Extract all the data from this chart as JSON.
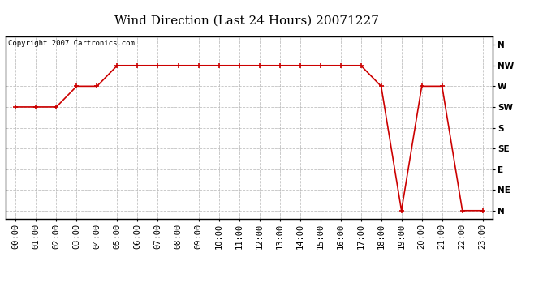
{
  "title": "Wind Direction (Last 24 Hours) 20071227",
  "copyright": "Copyright 2007 Cartronics.com",
  "x_labels": [
    "00:00",
    "01:00",
    "02:00",
    "03:00",
    "04:00",
    "05:00",
    "06:00",
    "07:00",
    "08:00",
    "09:00",
    "10:00",
    "11:00",
    "12:00",
    "13:00",
    "14:00",
    "15:00",
    "16:00",
    "17:00",
    "18:00",
    "19:00",
    "20:00",
    "21:00",
    "22:00",
    "23:00"
  ],
  "y_labels": [
    "N",
    "NE",
    "E",
    "SE",
    "S",
    "SW",
    "W",
    "NW",
    "N"
  ],
  "y_values": [
    0,
    1,
    2,
    3,
    4,
    5,
    6,
    7,
    8
  ],
  "wind_data": {
    "hours": [
      0,
      1,
      2,
      3,
      4,
      5,
      6,
      7,
      8,
      9,
      10,
      11,
      12,
      13,
      14,
      15,
      16,
      17,
      18,
      19,
      20,
      21,
      22,
      23
    ],
    "directions": [
      5,
      5,
      5,
      6,
      6,
      7,
      7,
      7,
      7,
      7,
      7,
      7,
      7,
      7,
      7,
      7,
      7,
      7,
      6,
      0,
      6,
      6,
      0,
      0
    ]
  },
  "line_color": "#cc0000",
  "marker_color": "#cc0000",
  "bg_color": "#ffffff",
  "plot_bg_color": "#ffffff",
  "grid_color": "#bbbbbb",
  "title_fontsize": 11,
  "copyright_fontsize": 6.5,
  "axis_fontsize": 7.5
}
